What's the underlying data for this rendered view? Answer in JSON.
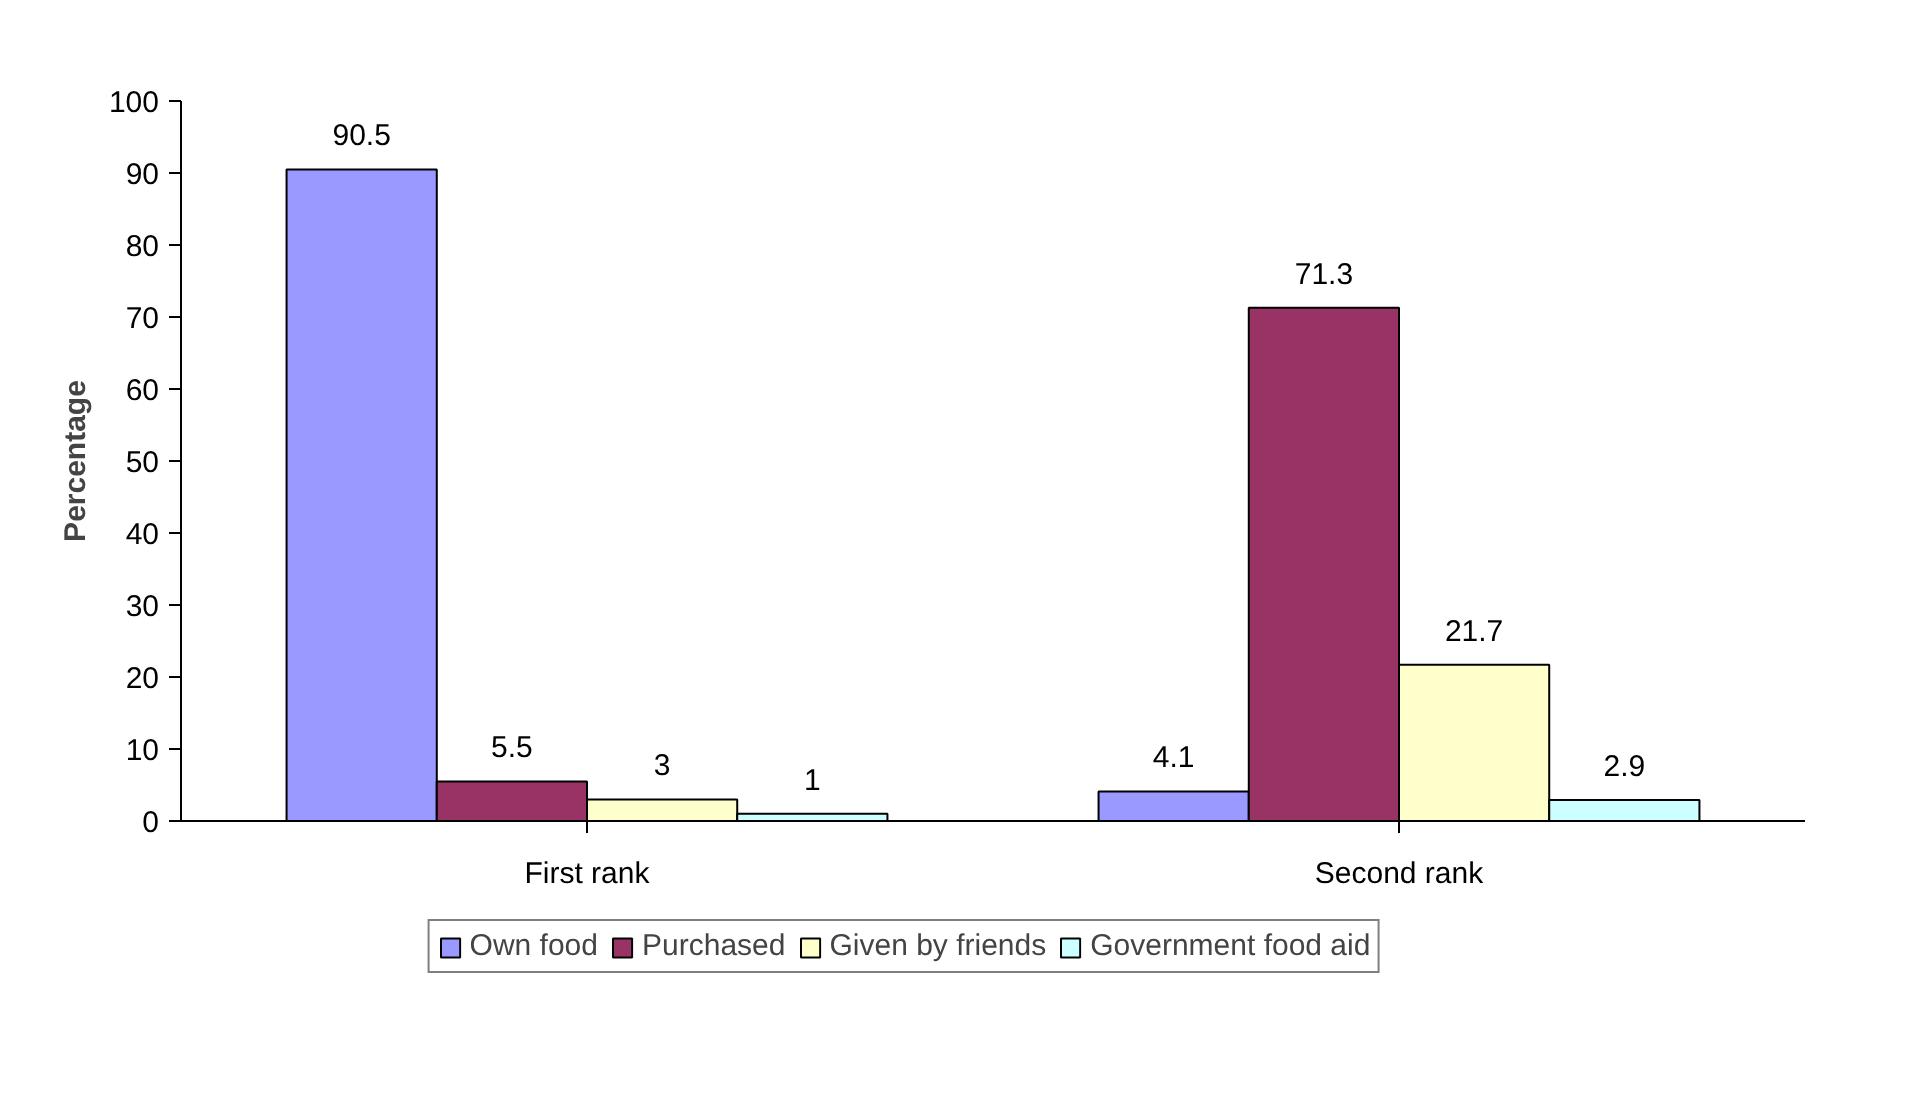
{
  "chart_data": {
    "type": "bar",
    "ylabel": "Percentage",
    "categories": [
      "First rank",
      "Second rank"
    ],
    "series": [
      {
        "name": "Own food",
        "color": "#9999ff",
        "values": [
          90.5,
          4.1
        ]
      },
      {
        "name": "Purchased",
        "color": "#993366",
        "values": [
          5.5,
          71.3
        ]
      },
      {
        "name": "Given by friends",
        "color": "#ffffcc",
        "values": [
          3,
          21.7
        ]
      },
      {
        "name": "Government food aid",
        "color": "#ccffff",
        "values": [
          1,
          2.9
        ]
      }
    ],
    "ylim": [
      0,
      100
    ],
    "yticks": [
      0,
      10,
      20,
      30,
      40,
      50,
      60,
      70,
      80,
      90,
      100
    ],
    "data_labels": true,
    "legend": "bottom",
    "grid": false
  }
}
